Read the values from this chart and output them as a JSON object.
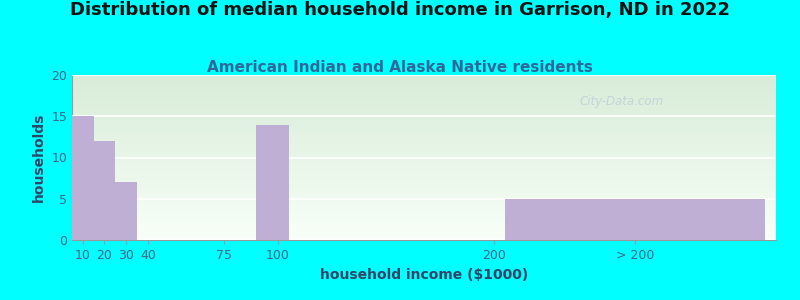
{
  "title": "Distribution of median household income in Garrison, ND in 2022",
  "subtitle": "American Indian and Alaska Native residents",
  "xlabel": "household income ($1000)",
  "ylabel": "households",
  "bar_color": "#c0afd5",
  "background_color": "#00ffff",
  "categories": [
    "10",
    "20",
    "30",
    "40",
    "75",
    "100",
    "200",
    "> 200"
  ],
  "values": [
    15,
    12,
    7,
    0,
    0,
    14,
    0,
    5
  ],
  "bar_lefts": [
    5,
    15,
    25,
    35,
    60,
    90,
    150,
    205
  ],
  "bar_widths": [
    10,
    10,
    10,
    10,
    15,
    15,
    50,
    120
  ],
  "xlim": [
    5,
    330
  ],
  "xtick_positions": [
    10,
    20,
    30,
    40,
    75,
    100,
    200,
    265
  ],
  "xtick_labels": [
    "10",
    "20",
    "30",
    "40",
    "75",
    "100",
    "200",
    "> 200"
  ],
  "ylim": [
    0,
    20
  ],
  "yticks": [
    0,
    5,
    10,
    15,
    20
  ],
  "title_fontsize": 13,
  "subtitle_fontsize": 11,
  "label_fontsize": 10,
  "tick_fontsize": 9,
  "title_color": "#111111",
  "subtitle_color": "#336699",
  "axis_label_color": "#334466",
  "tick_color": "#446688"
}
